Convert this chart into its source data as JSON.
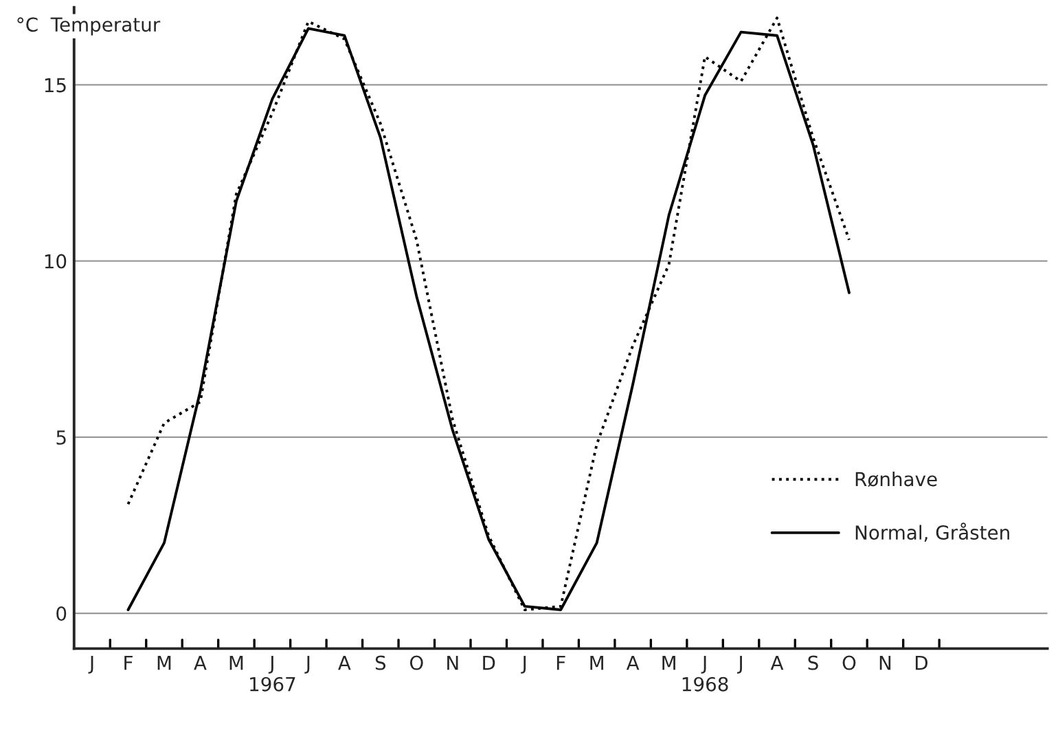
{
  "chart_data": {
    "type": "line",
    "ylabel": "°C  Temperatur",
    "categories": [
      "J",
      "F",
      "M",
      "A",
      "M",
      "J\n1967",
      "J",
      "A",
      "S",
      "O",
      "N",
      "D",
      "J",
      "F",
      "M",
      "A",
      "M",
      "J\n1968",
      "J",
      "A",
      "S",
      "O",
      "N",
      "D",
      null,
      null,
      null
    ],
    "ylim": [
      -1,
      17.2
    ],
    "yticks": [
      0,
      5,
      10,
      15
    ],
    "grid": "y",
    "legend": "right",
    "series": [
      {
        "name": "Rønhave",
        "color": "#000000",
        "line_style": "dotted",
        "values": [
          null,
          3.1,
          5.4,
          6.0,
          11.9,
          14.2,
          16.8,
          16.3,
          13.9,
          10.6,
          5.5,
          2.2,
          0.1,
          0.2,
          4.8,
          7.6,
          9.9,
          15.8,
          15.1,
          16.9,
          13.5,
          10.6,
          null,
          null,
          null,
          null,
          null
        ]
      },
      {
        "name": "Normal, Gråsten",
        "color": "#000000",
        "line_style": "solid",
        "values": [
          null,
          0.1,
          2.0,
          6.3,
          11.7,
          14.6,
          16.6,
          16.4,
          13.5,
          9.0,
          5.2,
          2.1,
          0.2,
          0.1,
          2.0,
          6.5,
          11.3,
          14.7,
          16.5,
          16.4,
          13.3,
          9.1,
          null,
          null,
          null,
          null,
          null
        ]
      }
    ]
  }
}
